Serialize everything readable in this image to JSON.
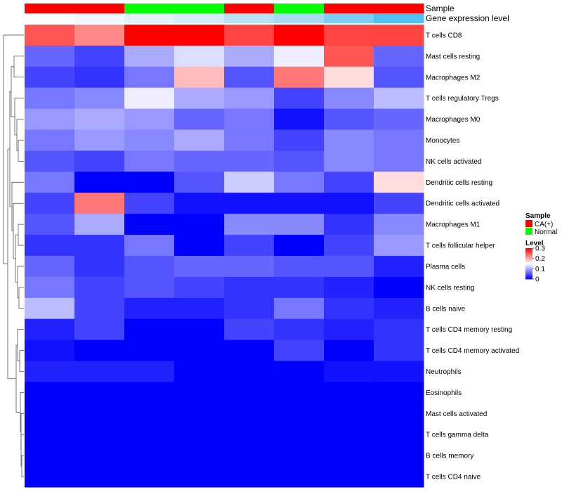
{
  "chart_data": {
    "type": "heatmap",
    "annotations": [
      {
        "name": "Sample",
        "values": [
          "CA(+)",
          "CA(+)",
          "Normal",
          "Normal",
          "CA(+)",
          "Normal",
          "CA(+)",
          "CA(+)"
        ],
        "colors": {
          "CA(+)": "#ff0000",
          "Normal": "#00ff00"
        }
      },
      {
        "name": "Gene expression level",
        "colors_by_column": [
          "#ffffff",
          "#f0f8fc",
          "#dff1f9",
          "#d4ecf7",
          "#b8e1f4",
          "#a6daf3",
          "#7ccdf2",
          "#52c0f0"
        ]
      }
    ],
    "rows": [
      "T cells CD8",
      "Mast cells resting",
      "Macrophages M2",
      "T cells regulatory  Tregs",
      "Macrophages M0",
      "Monocytes",
      "NK cells activated",
      "Dendritic cells resting",
      "Dendritic cells activated",
      "Macrophages M1",
      "T cells follicular helper",
      "Plasma cells",
      "NK cells resting",
      "B cells naive",
      "T cells CD4 memory resting",
      "T cells CD4 memory activated",
      "Neutrophils",
      "Eosinophils",
      "Mast cells activated",
      "T cells gamma delta",
      "B cells memory",
      "T cells CD4 naive"
    ],
    "values": [
      [
        0.25,
        0.22,
        0.3,
        0.3,
        0.26,
        0.3,
        0.26,
        0.26
      ],
      [
        0.06,
        0.04,
        0.1,
        0.13,
        0.1,
        0.14,
        0.25,
        0.06
      ],
      [
        0.04,
        0.03,
        0.07,
        0.19,
        0.05,
        0.23,
        0.17,
        0.05
      ],
      [
        0.07,
        0.08,
        0.14,
        0.1,
        0.09,
        0.04,
        0.08,
        0.11
      ],
      [
        0.09,
        0.1,
        0.09,
        0.06,
        0.07,
        0.01,
        0.05,
        0.06
      ],
      [
        0.07,
        0.09,
        0.08,
        0.1,
        0.07,
        0.04,
        0.08,
        0.07
      ],
      [
        0.05,
        0.04,
        0.07,
        0.06,
        0.06,
        0.05,
        0.08,
        0.07
      ],
      [
        0.07,
        0.0,
        0.0,
        0.05,
        0.12,
        0.07,
        0.04,
        0.17
      ],
      [
        0.04,
        0.23,
        0.04,
        0.01,
        0.01,
        0.01,
        0.01,
        0.04
      ],
      [
        0.05,
        0.1,
        0.0,
        0.0,
        0.08,
        0.08,
        0.03,
        0.08
      ],
      [
        0.03,
        0.03,
        0.07,
        0.0,
        0.04,
        0.0,
        0.04,
        0.09
      ],
      [
        0.06,
        0.03,
        0.05,
        0.06,
        0.06,
        0.05,
        0.05,
        0.02
      ],
      [
        0.07,
        0.04,
        0.05,
        0.04,
        0.03,
        0.03,
        0.02,
        0.0
      ],
      [
        0.11,
        0.04,
        0.02,
        0.02,
        0.03,
        0.07,
        0.03,
        0.02
      ],
      [
        0.02,
        0.04,
        0.0,
        0.0,
        0.04,
        0.03,
        0.02,
        0.03
      ],
      [
        0.01,
        0.0,
        0.0,
        0.0,
        0.0,
        0.04,
        0.0,
        0.03
      ],
      [
        0.02,
        0.02,
        0.02,
        0.0,
        0.0,
        0.0,
        0.01,
        0.01
      ],
      [
        0.0,
        0.0,
        0.0,
        0.0,
        0.0,
        0.0,
        0.0,
        0.0
      ],
      [
        0.0,
        0.0,
        0.0,
        0.0,
        0.0,
        0.0,
        0.0,
        0.0
      ],
      [
        0.0,
        0.0,
        0.0,
        0.0,
        0.0,
        0.0,
        0.0,
        0.0
      ],
      [
        0.0,
        0.0,
        0.0,
        0.0,
        0.0,
        0.0,
        0.0,
        0.0
      ],
      [
        0.0,
        0.0,
        0.0,
        0.0,
        0.0,
        0.0,
        0.0,
        0.0
      ]
    ],
    "color_scale": {
      "low": "#0000ff",
      "mid": "#ffffff",
      "high": "#ff0000",
      "min": 0,
      "mid_value": 0.15,
      "max": 0.3
    },
    "legend": {
      "placement": "right",
      "sample_title": "Sample",
      "sample_items": [
        {
          "label": "CA(+)",
          "color": "#ff0000"
        },
        {
          "label": "Normal",
          "color": "#00ff00"
        }
      ],
      "level_title": "Level",
      "level_ticks": [
        {
          "label": "0.3",
          "value": 0.3
        },
        {
          "label": "0.2",
          "value": 0.2
        },
        {
          "label": "0.1",
          "value": 0.1
        },
        {
          "label": "0",
          "value": 0
        }
      ]
    },
    "row_dendrogram": true
  }
}
